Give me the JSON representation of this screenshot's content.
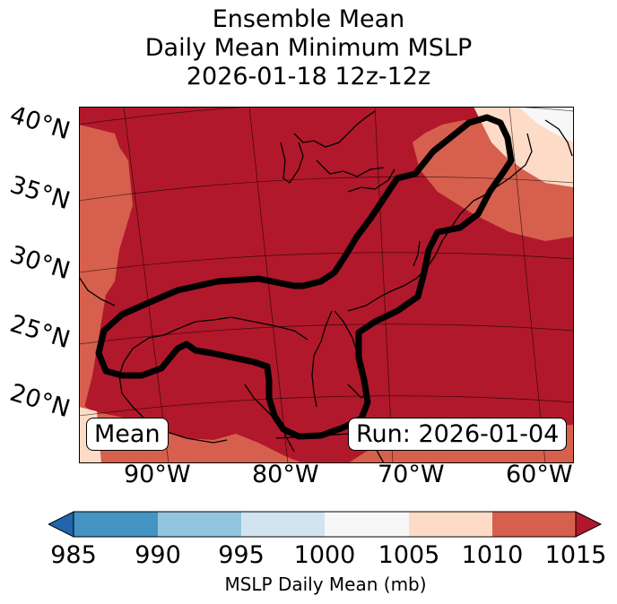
{
  "title": {
    "line1": "Ensemble Mean",
    "line2": "Daily Mean Minimum MSLP",
    "line3": "2026-01-18 12z-12z"
  },
  "map": {
    "latitude_labels": [
      "40°N",
      "35°N",
      "30°N",
      "25°N",
      "20°N"
    ],
    "longitude_labels": [
      "90°W",
      "80°W",
      "70°W",
      "60°W"
    ],
    "left_box": "Mean",
    "right_box": "Run: 2026-01-04",
    "contour_color": "#000000"
  },
  "colorbar": {
    "ticks": [
      "985",
      "990",
      "995",
      "1000",
      "1005",
      "1010",
      "1015"
    ],
    "label": "MSLP Daily Mean (mb)",
    "colors": [
      "#2166ac",
      "#4393c3",
      "#92c5de",
      "#d1e5f0",
      "#f7f7f7",
      "#fddbc7",
      "#d6604d",
      "#b2182b"
    ]
  }
}
